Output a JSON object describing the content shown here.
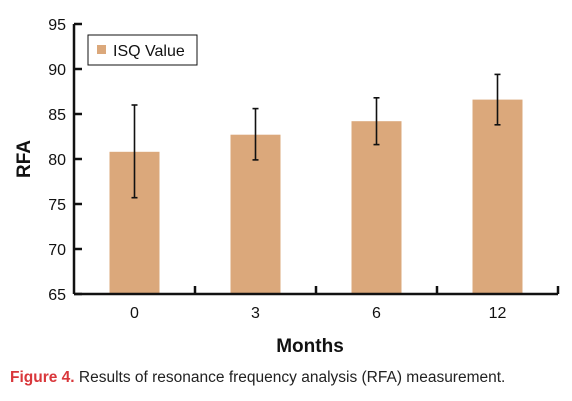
{
  "chart_data": {
    "type": "bar",
    "categories": [
      "0",
      "3",
      "6",
      "12"
    ],
    "series": [
      {
        "name": "ISQ Value",
        "values": [
          80.8,
          82.7,
          84.2,
          86.6
        ],
        "error_low": [
          75.7,
          79.9,
          81.6,
          83.8
        ],
        "error_high": [
          86.0,
          85.6,
          86.8,
          89.4
        ]
      }
    ],
    "xlabel": "Months",
    "ylabel": "RFA",
    "ylim": [
      65,
      95
    ],
    "yticks": [
      65,
      70,
      75,
      80,
      85,
      90,
      95
    ],
    "grid": false,
    "legend_position": "top-left"
  },
  "colors": {
    "bar": "#dba87b",
    "axis": "#111111",
    "figure_label": "#d9373b"
  },
  "caption": {
    "label": "Figure 4.",
    "text": " Results of resonance frequency analysis (RFA) measurement."
  }
}
